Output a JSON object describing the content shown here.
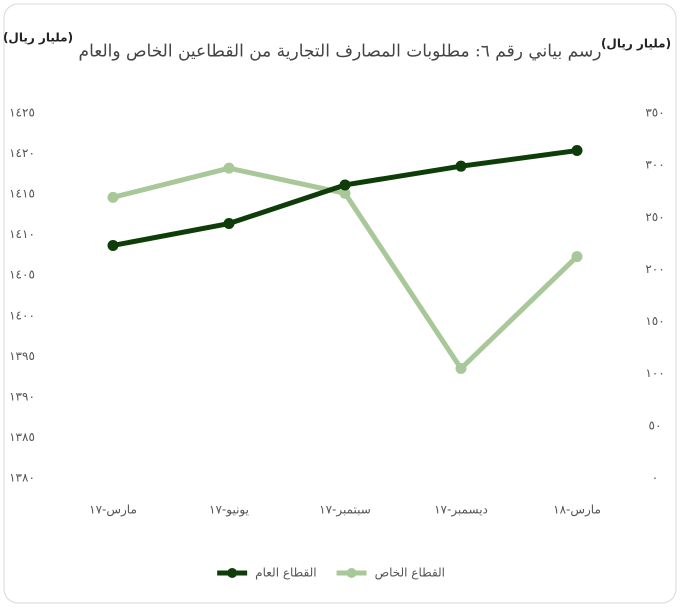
{
  "chart_data": {
    "type": "line",
    "title": "رسم بياني رقم ٦: مطلوبات المصارف التجارية من القطاعين الخاص والعام",
    "y_label": "(مليار ريال)",
    "y2_label": "(مليار ريال)",
    "categories": [
      "مارس-١٧",
      "يونيو-١٧",
      "سبتمبر-١٧",
      "ديسمبر-١٧",
      "مارس-١٨"
    ],
    "series": [
      {
        "name": "القطاع الخاص",
        "color": "#a9c89a",
        "values": [
          1414.6,
          1418.2,
          1415.1,
          1393.5,
          1407.3
        ]
      },
      {
        "name": "القطاع العام",
        "color": "#0e3d0a",
        "axis": "y2",
        "values": [
          223,
          244,
          281,
          299,
          314
        ]
      }
    ],
    "ylim": [
      1380,
      1425
    ],
    "yticks": [
      {
        "value": 1380,
        "label": "١٣٨٠"
      },
      {
        "value": 1385,
        "label": "١٣٨٥"
      },
      {
        "value": 1390,
        "label": "١٣٩٠"
      },
      {
        "value": 1395,
        "label": "١٣٩٥"
      },
      {
        "value": 1400,
        "label": "١٤٠٠"
      },
      {
        "value": 1405,
        "label": "١٤٠٥"
      },
      {
        "value": 1410,
        "label": "١٤١٠"
      },
      {
        "value": 1415,
        "label": "١٤١٥"
      },
      {
        "value": 1420,
        "label": "١٤٢٠"
      },
      {
        "value": 1425,
        "label": "١٤٢٥"
      }
    ],
    "y2lim": [
      0,
      350
    ],
    "y2ticks": [
      {
        "value": 0,
        "label": "٠"
      },
      {
        "value": 50,
        "label": "٥٠"
      },
      {
        "value": 100,
        "label": "١٠٠"
      },
      {
        "value": 150,
        "label": "١٥٠"
      },
      {
        "value": 200,
        "label": "٢٠٠"
      },
      {
        "value": 250,
        "label": "٢٥٠"
      },
      {
        "value": 300,
        "label": "٣٠٠"
      },
      {
        "value": 350,
        "label": "٣٥٠"
      }
    ],
    "legend": "bottom"
  }
}
